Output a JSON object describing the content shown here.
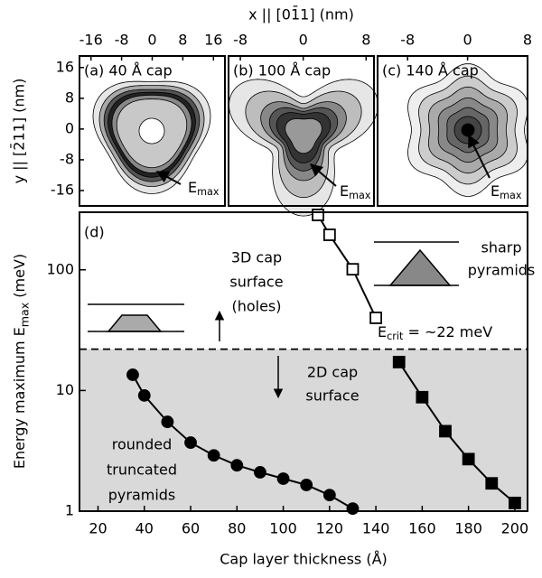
{
  "chart_data": [
    {
      "type": "contour",
      "title": "(a) 40 Å cap",
      "xlim": [
        -19,
        19
      ],
      "ylim": [
        -20,
        19
      ],
      "xticks": [
        -16,
        -8,
        0,
        8,
        16
      ],
      "yticks": [
        16,
        8,
        0,
        -8,
        -16
      ],
      "ylabel": "y || [2̄11] (nm)",
      "annotation": [
        "E",
        "max"
      ]
    },
    {
      "type": "contour",
      "title": "(b) 100 Å cap",
      "xlim": [
        -9.5,
        9
      ],
      "xticks": [
        -8,
        0,
        8
      ],
      "xlabel": "x  || [01̄1]  (nm)",
      "annotation": [
        "E",
        "max"
      ]
    },
    {
      "type": "contour",
      "title": "(c) 140 Å cap",
      "xlim": [
        -12,
        8
      ],
      "xticks": [
        -8,
        0,
        8
      ],
      "annotation": [
        "E",
        "max"
      ]
    },
    {
      "type": "scatter",
      "title": "(d)",
      "xlabel": "Cap layer thickness (Å)",
      "ylabel": [
        "Energy maximum E",
        "max",
        " (meV)"
      ],
      "xlim": [
        12,
        205.5
      ],
      "ylim": [
        1,
        300
      ],
      "log_y": true,
      "xticks": [
        20,
        40,
        60,
        80,
        100,
        120,
        140,
        160,
        180,
        200
      ],
      "yticks": [
        1,
        10,
        100
      ],
      "threshold": 22,
      "threshold_label": [
        "E",
        "crit",
        " = ~22 meV"
      ],
      "series": [
        {
          "marker": "circle",
          "color": "#000000",
          "x": [
            35,
            40,
            50,
            60,
            70,
            80,
            90,
            100,
            110,
            120,
            130
          ],
          "values": [
            13.5,
            9.1,
            5.5,
            3.7,
            2.9,
            2.4,
            2.1,
            1.86,
            1.65,
            1.36,
            1.05
          ]
        },
        {
          "marker": "square",
          "color": "#ffffff",
          "x": [
            115,
            120,
            130,
            140
          ],
          "values": [
            285,
            195,
            101,
            40
          ]
        },
        {
          "marker": "square",
          "color": "#000000",
          "x": [
            150,
            160,
            170,
            180,
            190,
            200
          ],
          "values": [
            17.2,
            8.8,
            4.6,
            2.7,
            1.7,
            1.17
          ]
        }
      ],
      "annotations": [
        [
          "3D cap",
          "surface",
          "(holes)"
        ],
        [
          "2D cap",
          "surface"
        ],
        [
          "rounded",
          "truncated",
          "pyramids"
        ],
        [
          "sharp",
          "pyramids"
        ]
      ]
    }
  ]
}
